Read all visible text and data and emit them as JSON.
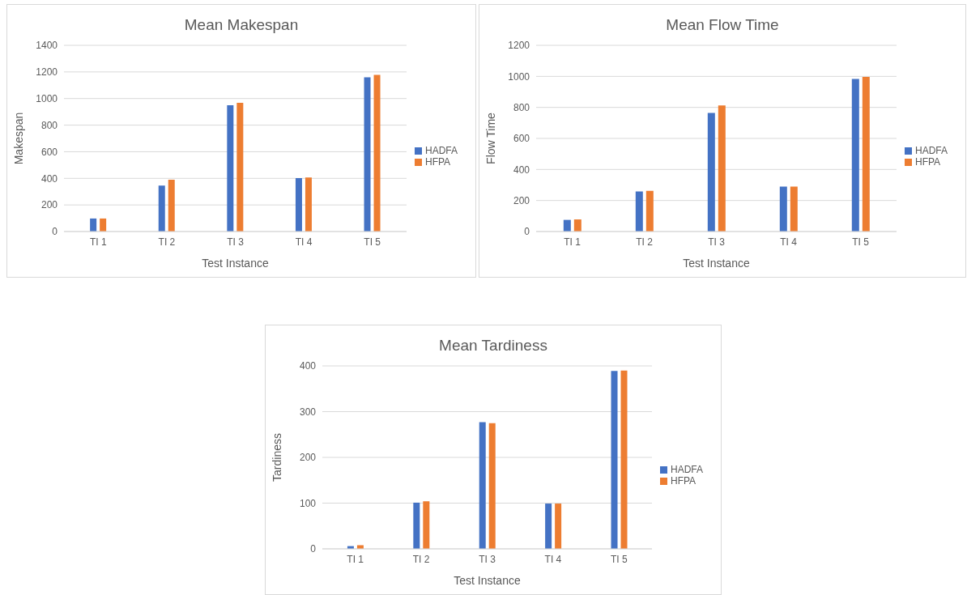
{
  "chart_data": [
    {
      "type": "bar",
      "title": "Mean Makespan",
      "xlabel": "Test Instance",
      "ylabel": "Makespan",
      "categories": [
        "TI 1",
        "TI 2",
        "TI 3",
        "TI 4",
        "TI 5"
      ],
      "series": [
        {
          "name": "HADFA",
          "color": "#4472c4",
          "values": [
            98,
            345,
            950,
            402,
            1160
          ]
        },
        {
          "name": "HFPA",
          "color": "#ed7d31",
          "values": [
            98,
            390,
            968,
            406,
            1178
          ]
        }
      ],
      "ylim": [
        0,
        1400
      ],
      "yticks": [
        0,
        200,
        400,
        600,
        800,
        1000,
        1200,
        1400
      ],
      "grid": "y",
      "legend": "right"
    },
    {
      "type": "bar",
      "title": "Mean Flow Time",
      "xlabel": "Test Instance",
      "ylabel": "Flow Time",
      "categories": [
        "TI 1",
        "TI 2",
        "TI 3",
        "TI 4",
        "TI 5"
      ],
      "series": [
        {
          "name": "HADFA",
          "color": "#4472c4",
          "values": [
            75,
            258,
            765,
            289,
            984
          ]
        },
        {
          "name": "HFPA",
          "color": "#ed7d31",
          "values": [
            78,
            262,
            813,
            289,
            997
          ]
        }
      ],
      "ylim": [
        0,
        1200
      ],
      "yticks": [
        0,
        200,
        400,
        600,
        800,
        1000,
        1200
      ],
      "grid": "y",
      "legend": "right"
    },
    {
      "type": "bar",
      "title": "Mean Tardiness",
      "xlabel": "Test Instance",
      "ylabel": "Tardiness",
      "categories": [
        "TI 1",
        "TI 2",
        "TI 3",
        "TI 4",
        "TI 5"
      ],
      "series": [
        {
          "name": "HADFA",
          "color": "#4472c4",
          "values": [
            6,
            101,
            277,
            99,
            389
          ]
        },
        {
          "name": "HFPA",
          "color": "#ed7d31",
          "values": [
            8,
            104,
            275,
            99,
            390
          ]
        }
      ],
      "ylim": [
        0,
        400
      ],
      "yticks": [
        0,
        100,
        200,
        300,
        400
      ],
      "grid": "y",
      "legend": "right"
    }
  ]
}
